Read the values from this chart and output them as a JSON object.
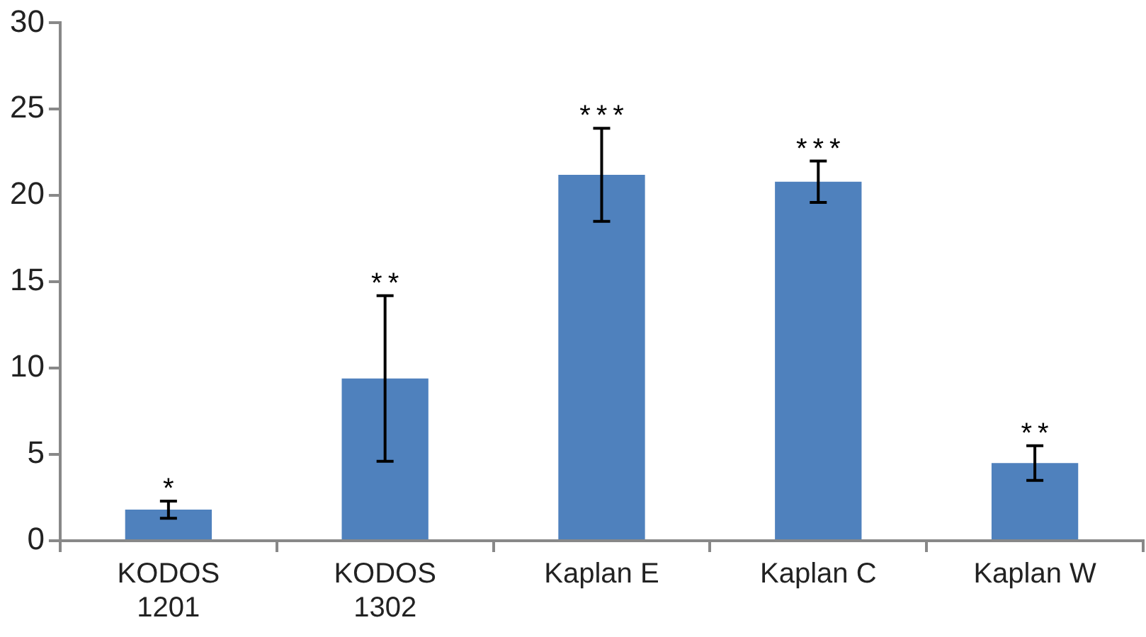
{
  "chart_data": {
    "type": "bar",
    "categories": [
      "KODOS\n1201",
      "KODOS\n1302",
      "Kaplan E",
      "Kaplan C",
      "Kaplan W"
    ],
    "values": [
      1.8,
      9.4,
      21.2,
      20.8,
      4.5
    ],
    "errors": [
      0.5,
      4.8,
      2.7,
      1.2,
      1.0
    ],
    "color": "#4f81bd",
    "ylim": [
      0,
      30
    ],
    "yticks": [
      0,
      5,
      10,
      15,
      20,
      25,
      30
    ],
    "grid": false,
    "legend": false,
    "annotations": [
      {
        "text": "*",
        "x": "KODOS\n1201",
        "y": 2.3
      },
      {
        "text": "**",
        "x": "KODOS\n1302",
        "y": 14.2
      },
      {
        "text": "***",
        "x": "Kaplan E",
        "y": 23.9
      },
      {
        "text": "***",
        "x": "Kaplan C",
        "y": 22.0
      },
      {
        "text": "**",
        "x": "Kaplan W",
        "y": 5.5
      }
    ]
  }
}
